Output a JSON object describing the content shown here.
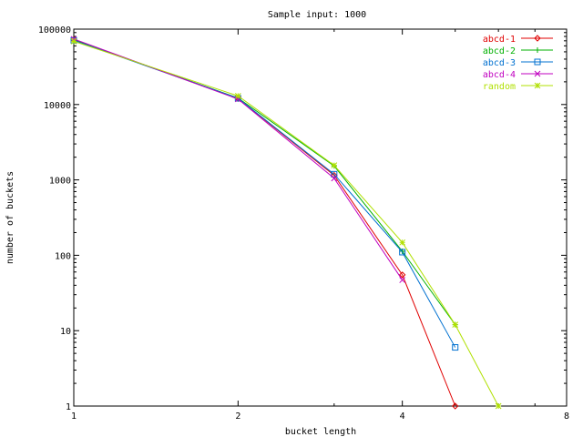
{
  "chart_data": {
    "type": "line",
    "title": "Sample input: 1000",
    "xlabel": "bucket length",
    "ylabel": "number of buckets",
    "x_scale": "log2",
    "y_scale": "log10",
    "xlim": [
      1,
      8
    ],
    "ylim": [
      1,
      100000
    ],
    "x_ticks": [
      {
        "value": 1,
        "label": "1"
      },
      {
        "value": 2,
        "label": "2"
      },
      {
        "value": 4,
        "label": "4"
      },
      {
        "value": 8,
        "label": "8"
      }
    ],
    "y_ticks": [
      {
        "value": 1,
        "label": "1"
      },
      {
        "value": 10,
        "label": "10"
      },
      {
        "value": 100,
        "label": "100"
      },
      {
        "value": 1000,
        "label": "1000"
      },
      {
        "value": 10000,
        "label": "10000"
      },
      {
        "value": 100000,
        "label": "100000"
      }
    ],
    "grid": false,
    "legend_position": "top-right",
    "series": [
      {
        "name": "abcd-1",
        "color": "#e00000",
        "marker": "diamond",
        "points": [
          [
            1,
            73000
          ],
          [
            2,
            12000
          ],
          [
            3,
            1150
          ],
          [
            4,
            55
          ],
          [
            5,
            1
          ]
        ]
      },
      {
        "name": "abcd-2",
        "color": "#00b000",
        "marker": "plus",
        "points": [
          [
            1,
            72000
          ],
          [
            2,
            12200
          ],
          [
            3,
            1530
          ],
          [
            4,
            113
          ],
          [
            5,
            12
          ]
        ]
      },
      {
        "name": "abcd-3",
        "color": "#0070d0",
        "marker": "square",
        "points": [
          [
            1,
            71000
          ],
          [
            2,
            12100
          ],
          [
            3,
            1190
          ],
          [
            4,
            110
          ],
          [
            5,
            6
          ]
        ]
      },
      {
        "name": "abcd-4",
        "color": "#c000c0",
        "marker": "x",
        "points": [
          [
            1,
            74000
          ],
          [
            2,
            11800
          ],
          [
            3,
            1050
          ],
          [
            4,
            47
          ]
        ]
      },
      {
        "name": "random",
        "color": "#b0e000",
        "marker": "star",
        "points": [
          [
            1,
            69000
          ],
          [
            2,
            13000
          ],
          [
            3,
            1560
          ],
          [
            4,
            148
          ],
          [
            5,
            12
          ],
          [
            6,
            1
          ]
        ]
      }
    ]
  }
}
